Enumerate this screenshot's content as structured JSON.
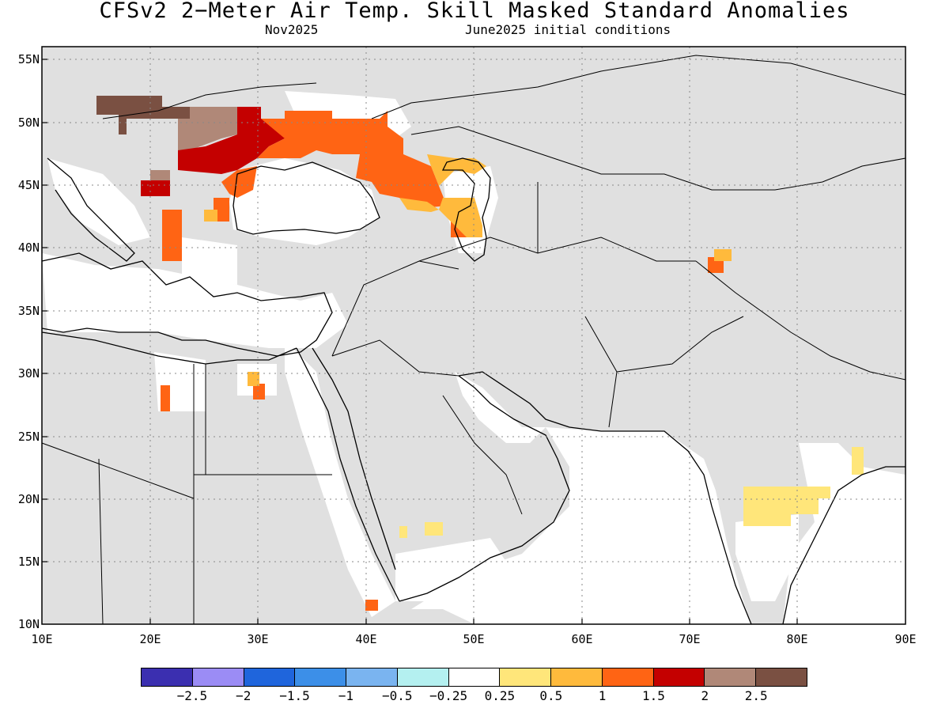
{
  "title": "CFSv2 2−Meter Air Temp. Skill Masked Standard Anomalies",
  "subtitle_left": "Nov2025",
  "subtitle_right": "June2025 initial conditions",
  "map": {
    "lat_labels": [
      "55N",
      "50N",
      "45N",
      "40N",
      "35N",
      "30N",
      "25N",
      "20N",
      "15N",
      "10N"
    ],
    "lon_labels": [
      "10E",
      "20E",
      "30E",
      "40E",
      "50E",
      "60E",
      "70E",
      "80E",
      "90E"
    ],
    "extent": {
      "lon_min": 10,
      "lon_max": 90,
      "lat_min": 10,
      "lat_max": 56
    },
    "grid": "dotted",
    "masked_color": "#e0e0e0",
    "land_regions": [
      "Europe",
      "Middle East",
      "Central Asia",
      "South Asia",
      "North Africa",
      "Arabian Peninsula"
    ]
  },
  "colorbar": {
    "colors": [
      "#3b2fb0",
      "#9b8cf5",
      "#1f65dc",
      "#3c8fe8",
      "#7ab4f0",
      "#b4f0f0",
      "#ffffff",
      "#ffe67a",
      "#ffba3c",
      "#ff6414",
      "#c40000",
      "#b08878",
      "#7a5042"
    ],
    "tick_labels": [
      "−2.5",
      "−2",
      "−1.5",
      "−1",
      "−0.5",
      "−0.25",
      "0.25",
      "0.5",
      "1",
      "1.5",
      "2",
      "2.5"
    ]
  }
}
